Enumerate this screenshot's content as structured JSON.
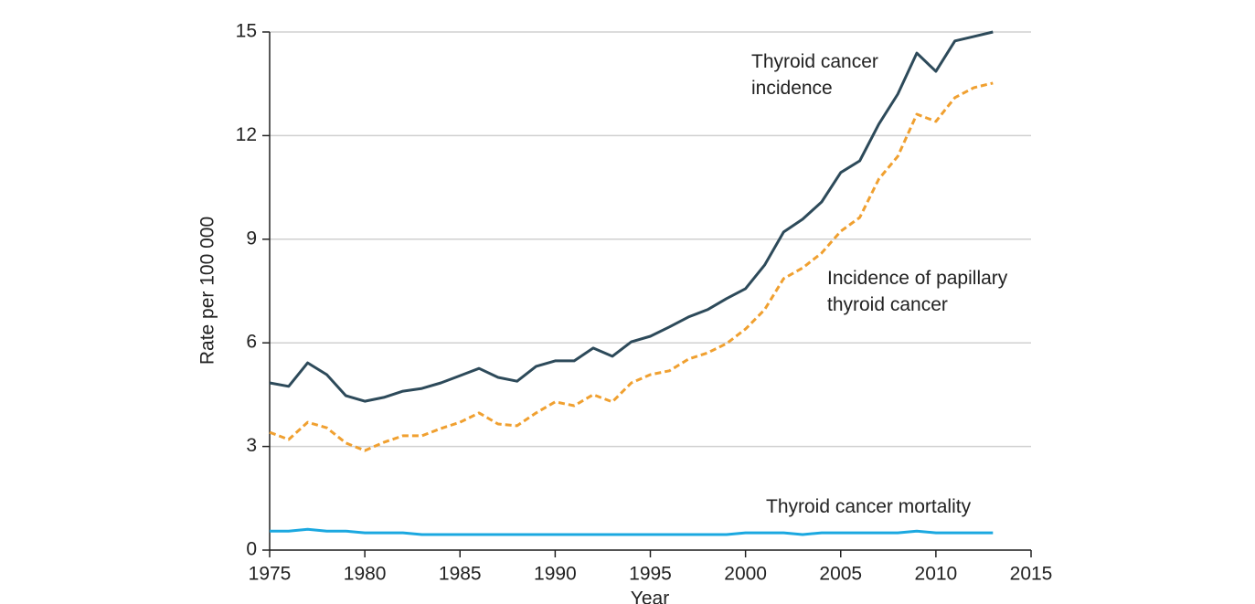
{
  "chart_data": {
    "type": "line",
    "x_label": "Year",
    "y_label": "Rate per 100 000",
    "x": [
      1975,
      1976,
      1977,
      1978,
      1979,
      1980,
      1981,
      1982,
      1983,
      1984,
      1985,
      1986,
      1987,
      1988,
      1989,
      1990,
      1991,
      1992,
      1993,
      1994,
      1995,
      1996,
      1997,
      1998,
      1999,
      2000,
      2001,
      2002,
      2003,
      2004,
      2005,
      2006,
      2007,
      2008,
      2009,
      2010,
      2011,
      2012,
      2013
    ],
    "series": [
      {
        "name": "Thyroid cancer incidence",
        "color": "#2d4a5a",
        "dashed": false,
        "values": [
          4.84,
          4.74,
          5.42,
          5.08,
          4.47,
          4.31,
          4.42,
          4.6,
          4.68,
          4.84,
          5.05,
          5.26,
          5.0,
          4.89,
          5.32,
          5.48,
          5.48,
          5.85,
          5.61,
          6.03,
          6.19,
          6.46,
          6.75,
          6.96,
          7.28,
          7.57,
          8.25,
          9.21,
          9.58,
          10.08,
          10.93,
          11.27,
          12.33,
          13.2,
          14.39,
          13.86,
          14.74,
          14.87,
          15.0
        ]
      },
      {
        "name": "Incidence of papillary thyroid cancer",
        "color": "#f0a030",
        "dashed": true,
        "values": [
          3.41,
          3.2,
          3.7,
          3.54,
          3.1,
          2.88,
          3.12,
          3.31,
          3.31,
          3.52,
          3.7,
          3.97,
          3.65,
          3.6,
          3.97,
          4.29,
          4.18,
          4.5,
          4.29,
          4.84,
          5.08,
          5.19,
          5.53,
          5.71,
          5.98,
          6.4,
          6.96,
          7.86,
          8.17,
          8.6,
          9.23,
          9.63,
          10.74,
          11.4,
          12.62,
          12.41,
          13.1,
          13.39,
          13.52
        ]
      },
      {
        "name": "Thyroid cancer mortality",
        "color": "#1ba8e0",
        "dashed": false,
        "values": [
          0.55,
          0.55,
          0.6,
          0.55,
          0.55,
          0.5,
          0.5,
          0.5,
          0.45,
          0.45,
          0.45,
          0.45,
          0.45,
          0.45,
          0.45,
          0.45,
          0.45,
          0.45,
          0.45,
          0.45,
          0.45,
          0.45,
          0.45,
          0.45,
          0.45,
          0.5,
          0.5,
          0.5,
          0.45,
          0.5,
          0.5,
          0.5,
          0.5,
          0.5,
          0.55,
          0.5,
          0.5,
          0.5,
          0.5
        ]
      }
    ],
    "xlim": [
      1975,
      2015
    ],
    "xticks": [
      1975,
      1980,
      1985,
      1990,
      1995,
      2000,
      2005,
      2010,
      2015
    ],
    "ylim": [
      0,
      15
    ],
    "yticks": [
      0,
      3,
      6,
      9,
      12,
      15
    ],
    "grid": true
  }
}
